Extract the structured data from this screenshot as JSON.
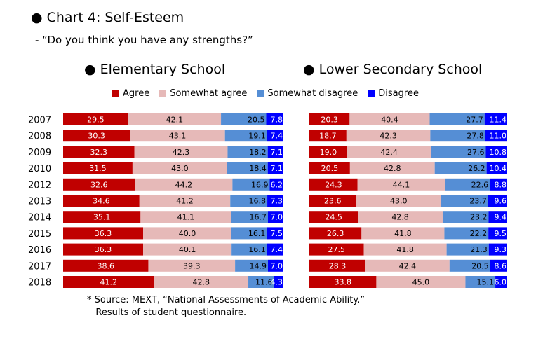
{
  "title": "● Chart 4: Self-Esteem",
  "subtitle": "- “Do you think you have any strengths?”",
  "note": "* Source: MEXT, “National Assessments of Academic Ability.”\n   Results of student questionnaire.",
  "colors": {
    "agree": "#c00000",
    "somewhat_agree": "#e6b9b8",
    "somewhat_disagree": "#558ed5",
    "disagree": "#0000ff"
  },
  "legend": [
    "Agree",
    "Somewhat agree",
    "Somewhat disagree",
    "Disagree"
  ],
  "chart_data": [
    {
      "type": "bar",
      "orientation": "horizontal",
      "stacked": "100%",
      "title": "● Elementary School",
      "categories": [
        "2007",
        "2008",
        "2009",
        "2010",
        "2012",
        "2013",
        "2014",
        "2015",
        "2016",
        "2017",
        "2018"
      ],
      "series": [
        {
          "name": "Agree",
          "values": [
            29.5,
            30.3,
            32.3,
            31.5,
            32.6,
            34.6,
            35.1,
            36.3,
            36.3,
            38.6,
            41.2
          ]
        },
        {
          "name": "Somewhat agree",
          "values": [
            42.1,
            43.1,
            42.3,
            43.0,
            44.2,
            41.2,
            41.1,
            40.0,
            40.1,
            39.3,
            42.8
          ]
        },
        {
          "name": "Somewhat disagree",
          "values": [
            20.5,
            19.1,
            18.2,
            18.4,
            16.9,
            16.8,
            16.7,
            16.1,
            16.1,
            14.9,
            11.6
          ]
        },
        {
          "name": "Disagree",
          "values": [
            7.8,
            7.4,
            7.1,
            7.1,
            6.2,
            7.3,
            7.0,
            7.5,
            7.4,
            7.0,
            4.3
          ]
        }
      ],
      "labels": [
        [
          "29.5",
          "42.1",
          "20.5",
          "7.8"
        ],
        [
          "30.3",
          "43.1",
          "19.1",
          "7.4"
        ],
        [
          "32.3",
          "42.3",
          "18.2",
          "7.1"
        ],
        [
          "31.5",
          "43.0",
          "18.4",
          "7.1"
        ],
        [
          "32.6",
          "44.2",
          "16.9",
          "6.2"
        ],
        [
          "34.6",
          "41.2",
          "16.8",
          "7.3"
        ],
        [
          "35.1",
          "41.1",
          "16.7",
          "7.0"
        ],
        [
          "36.3",
          "40.0",
          "16.1",
          "7.5"
        ],
        [
          "36.3",
          "40.1",
          "16.1",
          "7.4"
        ],
        [
          "38.6",
          "39.3",
          "14.9",
          "7.0"
        ],
        [
          "41.2",
          "42.8",
          "11.6",
          "4.3"
        ]
      ],
      "xlim": [
        0,
        100
      ]
    },
    {
      "type": "bar",
      "orientation": "horizontal",
      "stacked": "100%",
      "title": "● Lower Secondary School",
      "categories": [
        "2007",
        "2008",
        "2009",
        "2010",
        "2012",
        "2013",
        "2014",
        "2015",
        "2016",
        "2017",
        "2018"
      ],
      "series": [
        {
          "name": "Agree",
          "values": [
            20.3,
            18.7,
            19.0,
            20.5,
            24.3,
            23.6,
            24.5,
            26.3,
            27.5,
            28.3,
            33.8
          ]
        },
        {
          "name": "Somewhat agree",
          "values": [
            40.4,
            42.3,
            42.4,
            42.8,
            44.1,
            43.0,
            42.8,
            41.8,
            41.8,
            42.4,
            45.0
          ]
        },
        {
          "name": "Somewhat disagree",
          "values": [
            27.7,
            27.8,
            27.6,
            26.2,
            22.6,
            23.7,
            23.2,
            22.2,
            21.3,
            20.5,
            15.1
          ]
        },
        {
          "name": "Disagree",
          "values": [
            11.4,
            11.0,
            10.8,
            10.4,
            8.8,
            9.6,
            9.4,
            9.5,
            9.3,
            8.6,
            6.0
          ]
        }
      ],
      "labels": [
        [
          "20.3",
          "40.4",
          "27.7",
          "11.4"
        ],
        [
          "18.7",
          "42.3",
          "27.8",
          "11.0"
        ],
        [
          "19.0",
          "42.4",
          "27.6",
          "10.8"
        ],
        [
          "20.5",
          "42.8",
          "26.2",
          "10.4"
        ],
        [
          "24.3",
          "44.1",
          "22.6",
          "8.8"
        ],
        [
          "23.6",
          "43.0",
          "23.7",
          "9.6"
        ],
        [
          "24.5",
          "42.8",
          "23.2",
          "9.4"
        ],
        [
          "26.3",
          "41.8",
          "22.2",
          "9.5"
        ],
        [
          "27.5",
          "41.8",
          "21.3",
          "9.3"
        ],
        [
          "28.3",
          "42.4",
          "20.5",
          "8.6"
        ],
        [
          "33.8",
          "45.0",
          "15.1",
          "6.0"
        ]
      ],
      "xlim": [
        0,
        100
      ]
    }
  ]
}
